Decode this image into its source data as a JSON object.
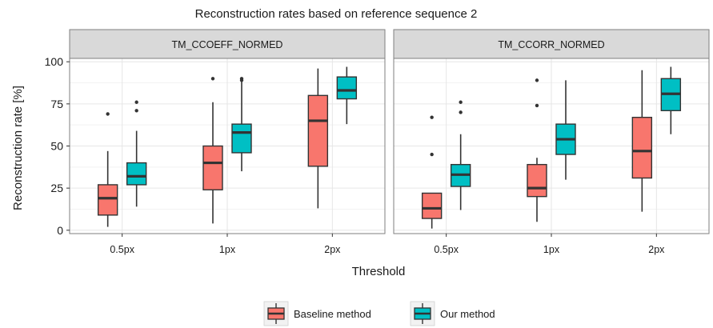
{
  "chart_data": {
    "type": "boxplot",
    "title": "Reconstruction rates based on reference sequence 2",
    "xlabel": "Threshold",
    "ylabel": "Reconstruction rate [%]",
    "ylim": [
      -2,
      102
    ],
    "yticks": [
      0,
      25,
      50,
      75,
      100
    ],
    "categories": [
      "0.5px",
      "1px",
      "2px"
    ],
    "grid": true,
    "legend_position": "bottom",
    "colors": {
      "Baseline method": "#F8766D",
      "Our method": "#00BFC4"
    },
    "legend": [
      "Baseline method",
      "Our method"
    ],
    "panels": [
      {
        "label": "TM_CCOEFF_NORMED",
        "series": [
          {
            "name": "Baseline method",
            "boxes": [
              {
                "min": 2,
                "q1": 9,
                "median": 19,
                "q3": 27,
                "max": 47,
                "outliers": [
                  69
                ]
              },
              {
                "min": 4,
                "q1": 24,
                "median": 40,
                "q3": 50,
                "max": 76,
                "outliers": [
                  90
                ]
              },
              {
                "min": 13,
                "q1": 38,
                "median": 65,
                "q3": 80,
                "max": 96,
                "outliers": []
              }
            ]
          },
          {
            "name": "Our method",
            "boxes": [
              {
                "min": 14,
                "q1": 27,
                "median": 32,
                "q3": 40,
                "max": 59,
                "outliers": [
                  71,
                  76
                ]
              },
              {
                "min": 35,
                "q1": 46,
                "median": 58,
                "q3": 63,
                "max": 89,
                "outliers": [
                  89,
                  90
                ]
              },
              {
                "min": 63,
                "q1": 78,
                "median": 83,
                "q3": 91,
                "max": 97,
                "outliers": []
              }
            ]
          }
        ]
      },
      {
        "label": "TM_CCORR_NORMED",
        "series": [
          {
            "name": "Baseline method",
            "boxes": [
              {
                "min": 1,
                "q1": 7,
                "median": 13,
                "q3": 22,
                "max": 22,
                "outliers": [
                  45,
                  67
                ]
              },
              {
                "min": 5,
                "q1": 20,
                "median": 25,
                "q3": 39,
                "max": 43,
                "outliers": [
                  74,
                  89
                ]
              },
              {
                "min": 11,
                "q1": 31,
                "median": 47,
                "q3": 67,
                "max": 95,
                "outliers": []
              }
            ]
          },
          {
            "name": "Our method",
            "boxes": [
              {
                "min": 12,
                "q1": 26,
                "median": 33,
                "q3": 39,
                "max": 57,
                "outliers": [
                  70,
                  76
                ]
              },
              {
                "min": 30,
                "q1": 45,
                "median": 54,
                "q3": 63,
                "max": 89,
                "outliers": []
              },
              {
                "min": 57,
                "q1": 71,
                "median": 81,
                "q3": 90,
                "max": 97,
                "outliers": []
              }
            ]
          }
        ]
      }
    ]
  }
}
